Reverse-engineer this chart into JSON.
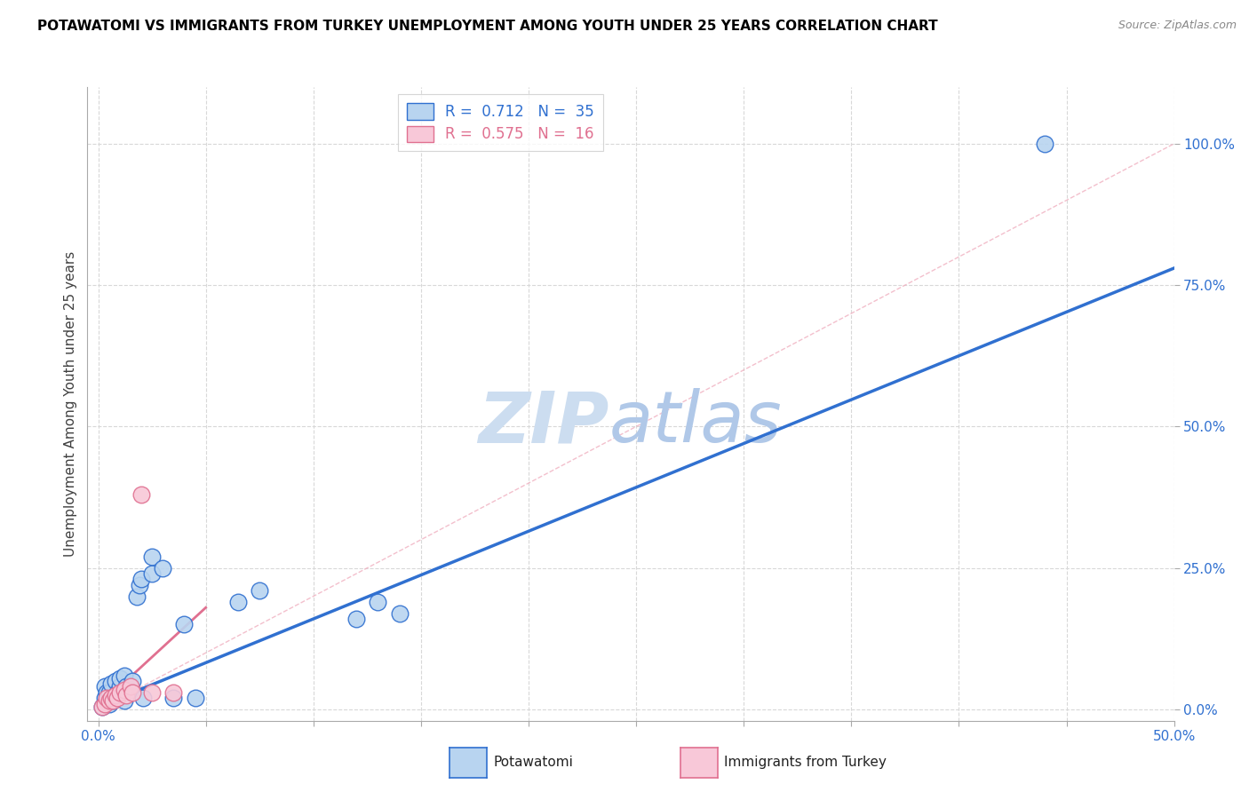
{
  "title": "POTAWATOMI VS IMMIGRANTS FROM TURKEY UNEMPLOYMENT AMONG YOUTH UNDER 25 YEARS CORRELATION CHART",
  "source": "Source: ZipAtlas.com",
  "ylabel": "Unemployment Among Youth under 25 years",
  "xlabel_ticks_show": [
    "0.0%",
    "50.0%"
  ],
  "xlabel_vals": [
    0.0,
    0.05,
    0.1,
    0.15,
    0.2,
    0.25,
    0.3,
    0.35,
    0.4,
    0.45,
    0.5
  ],
  "xlabel_label_vals": [
    0.0,
    0.5
  ],
  "ylabel_ticks": [
    "0.0%",
    "25.0%",
    "50.0%",
    "75.0%",
    "100.0%"
  ],
  "ylabel_vals": [
    0.0,
    0.25,
    0.5,
    0.75,
    1.0
  ],
  "xlim": [
    -0.005,
    0.5
  ],
  "ylim": [
    -0.02,
    1.1
  ],
  "legend_blue_R": "0.712",
  "legend_blue_N": "35",
  "legend_pink_R": "0.575",
  "legend_pink_N": "16",
  "blue_color": "#b8d4f0",
  "pink_color": "#f8c8d8",
  "blue_line_color": "#3070d0",
  "pink_line_color": "#e07090",
  "blue_scatter": [
    [
      0.002,
      0.005
    ],
    [
      0.003,
      0.02
    ],
    [
      0.003,
      0.04
    ],
    [
      0.004,
      0.03
    ],
    [
      0.005,
      0.01
    ],
    [
      0.005,
      0.03
    ],
    [
      0.006,
      0.02
    ],
    [
      0.006,
      0.045
    ],
    [
      0.007,
      0.015
    ],
    [
      0.008,
      0.02
    ],
    [
      0.008,
      0.05
    ],
    [
      0.009,
      0.03
    ],
    [
      0.01,
      0.04
    ],
    [
      0.01,
      0.055
    ],
    [
      0.012,
      0.015
    ],
    [
      0.012,
      0.06
    ],
    [
      0.013,
      0.04
    ],
    [
      0.015,
      0.035
    ],
    [
      0.016,
      0.05
    ],
    [
      0.018,
      0.2
    ],
    [
      0.019,
      0.22
    ],
    [
      0.02,
      0.23
    ],
    [
      0.021,
      0.02
    ],
    [
      0.025,
      0.24
    ],
    [
      0.025,
      0.27
    ],
    [
      0.03,
      0.25
    ],
    [
      0.035,
      0.02
    ],
    [
      0.04,
      0.15
    ],
    [
      0.045,
      0.02
    ],
    [
      0.065,
      0.19
    ],
    [
      0.075,
      0.21
    ],
    [
      0.12,
      0.16
    ],
    [
      0.13,
      0.19
    ],
    [
      0.14,
      0.17
    ],
    [
      0.44,
      1.0
    ]
  ],
  "pink_scatter": [
    [
      0.002,
      0.005
    ],
    [
      0.003,
      0.01
    ],
    [
      0.004,
      0.02
    ],
    [
      0.005,
      0.015
    ],
    [
      0.006,
      0.02
    ],
    [
      0.007,
      0.015
    ],
    [
      0.008,
      0.025
    ],
    [
      0.009,
      0.02
    ],
    [
      0.01,
      0.03
    ],
    [
      0.012,
      0.035
    ],
    [
      0.013,
      0.025
    ],
    [
      0.015,
      0.04
    ],
    [
      0.016,
      0.03
    ],
    [
      0.02,
      0.38
    ],
    [
      0.025,
      0.03
    ],
    [
      0.035,
      0.03
    ]
  ],
  "blue_line_x": [
    0.0,
    0.5
  ],
  "blue_line_y": [
    0.005,
    0.78
  ],
  "pink_line_x": [
    0.0,
    0.05
  ],
  "pink_line_y": [
    0.005,
    0.18
  ],
  "diag_line_x": [
    0.0,
    0.5
  ],
  "diag_line_y": [
    0.0,
    1.0
  ],
  "background_color": "#ffffff",
  "grid_color": "#d8d8d8",
  "title_color": "#000000",
  "source_color": "#888888",
  "axis_label_color": "#3070d0",
  "watermark_zip": "ZIP",
  "watermark_atlas": "atlas",
  "watermark_color": "#ccddf0"
}
